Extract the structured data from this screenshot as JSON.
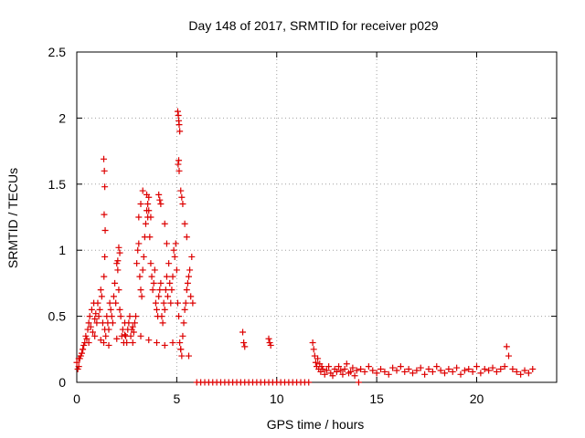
{
  "chart_data": {
    "type": "scatter",
    "title": "Day 148 of 2017, SRMTID for receiver p029",
    "xlabel": "GPS time / hours",
    "ylabel": "SRMTID / TECUs",
    "xlim": [
      0,
      24
    ],
    "ylim": [
      0,
      2.5
    ],
    "xticks": [
      0,
      5,
      10,
      15,
      20
    ],
    "xtick_labels": [
      "0",
      "5",
      "10",
      "15",
      "20"
    ],
    "yticks": [
      0,
      0.5,
      1,
      1.5,
      2,
      2.5
    ],
    "ytick_labels": [
      "0",
      "0.5",
      "1",
      "1.5",
      "2",
      "2.5"
    ],
    "grid": true,
    "marker": "+",
    "color": "#dd0000",
    "series": [
      {
        "name": "SRMTID",
        "x": [
          0.0,
          0.05,
          0.1,
          0.15,
          0.2,
          0.25,
          0.3,
          0.35,
          0.4,
          0.45,
          0.5,
          0.55,
          0.6,
          0.65,
          0.7,
          0.75,
          0.8,
          0.85,
          0.9,
          0.95,
          1.0,
          1.05,
          1.1,
          1.15,
          1.2,
          1.25,
          1.3,
          1.35,
          1.4,
          1.45,
          1.5,
          1.55,
          1.6,
          1.65,
          1.7,
          1.75,
          1.8,
          1.85,
          1.9,
          1.95,
          2.0,
          2.05,
          2.1,
          2.15,
          2.2,
          2.25,
          2.3,
          2.35,
          2.4,
          2.45,
          2.5,
          2.55,
          2.6,
          2.65,
          2.7,
          2.75,
          2.8,
          2.85,
          2.9,
          2.95,
          3.0,
          3.05,
          3.1,
          3.15,
          3.2,
          3.25,
          3.3,
          3.35,
          3.4,
          3.45,
          3.5,
          3.55,
          3.6,
          3.65,
          3.7,
          3.75,
          3.8,
          3.85,
          3.9,
          3.95,
          4.0,
          4.05,
          4.1,
          4.15,
          4.2,
          4.25,
          4.3,
          4.35,
          4.4,
          4.45,
          4.5,
          4.55,
          4.6,
          4.65,
          4.7,
          4.75,
          4.8,
          4.85,
          4.9,
          4.95,
          5.0,
          5.05,
          5.1,
          5.15,
          5.2,
          5.25,
          5.3,
          5.35,
          5.4,
          5.45,
          5.5,
          5.55,
          5.6,
          5.65,
          5.7,
          5.75,
          5.8,
          1.35,
          1.38,
          1.4,
          1.37,
          1.42,
          1.4,
          1.36,
          2.1,
          2.15,
          2.05,
          3.1,
          3.2,
          3.3,
          3.5,
          3.55,
          3.6,
          3.7,
          4.1,
          4.2,
          4.15,
          4.4,
          4.5,
          5.05,
          5.08,
          5.1,
          5.12,
          5.15,
          5.1,
          5.07,
          5.12,
          5.2,
          5.25,
          5.3,
          5.4,
          5.5,
          0.1,
          0.3,
          0.6,
          0.9,
          1.2,
          1.6,
          2.0,
          2.4,
          2.8,
          3.2,
          3.6,
          4.0,
          4.4,
          4.8,
          5.2,
          5.6,
          6.0,
          6.2,
          6.4,
          6.6,
          6.8,
          7.0,
          7.2,
          7.4,
          7.6,
          7.8,
          8.0,
          8.2,
          8.4,
          8.6,
          8.8,
          9.0,
          9.2,
          9.4,
          9.6,
          9.8,
          10.0,
          10.2,
          10.4,
          10.6,
          10.8,
          11.0,
          11.2,
          11.4,
          11.6,
          14.1,
          8.3,
          8.35,
          8.4,
          9.6,
          9.65,
          9.7,
          11.8,
          11.85,
          11.9,
          11.95,
          12.0,
          12.05,
          12.1,
          12.15,
          12.2,
          12.25,
          12.3,
          12.4,
          12.5,
          12.6,
          12.7,
          12.8,
          12.9,
          13.0,
          13.1,
          13.2,
          13.3,
          13.4,
          13.5,
          13.6,
          13.7,
          13.8,
          13.9,
          14.0,
          14.2,
          14.4,
          14.6,
          14.8,
          15.0,
          15.2,
          15.4,
          15.6,
          15.8,
          16.0,
          16.2,
          16.4,
          16.6,
          16.8,
          17.0,
          17.2,
          17.4,
          17.6,
          17.8,
          18.0,
          18.2,
          18.4,
          18.6,
          18.8,
          19.0,
          19.2,
          19.4,
          19.6,
          19.8,
          20.0,
          20.2,
          20.4,
          20.6,
          20.8,
          21.0,
          21.2,
          21.4,
          21.5,
          21.6,
          21.8,
          22.0,
          22.2,
          22.4,
          22.6,
          22.8
        ],
        "y": [
          0.15,
          0.1,
          0.12,
          0.18,
          0.2,
          0.22,
          0.25,
          0.28,
          0.3,
          0.35,
          0.33,
          0.4,
          0.45,
          0.5,
          0.42,
          0.55,
          0.38,
          0.6,
          0.48,
          0.52,
          0.45,
          0.6,
          0.5,
          0.55,
          0.7,
          0.65,
          0.45,
          0.3,
          0.4,
          0.35,
          0.5,
          0.45,
          0.4,
          0.6,
          0.55,
          0.5,
          0.45,
          0.65,
          0.75,
          0.6,
          0.9,
          0.85,
          0.7,
          0.55,
          0.5,
          0.35,
          0.4,
          0.3,
          0.45,
          0.35,
          0.3,
          0.4,
          0.45,
          0.5,
          0.35,
          0.4,
          0.42,
          0.38,
          0.45,
          0.5,
          0.9,
          1.0,
          1.05,
          0.8,
          0.7,
          0.65,
          0.85,
          0.95,
          1.1,
          1.2,
          1.3,
          1.25,
          1.4,
          1.1,
          0.9,
          0.8,
          0.7,
          0.75,
          0.85,
          0.6,
          0.55,
          0.5,
          0.65,
          0.7,
          0.75,
          0.5,
          0.45,
          0.6,
          0.55,
          0.7,
          0.8,
          0.65,
          0.9,
          0.75,
          0.6,
          0.7,
          0.8,
          1.0,
          0.95,
          1.05,
          0.85,
          0.6,
          0.5,
          0.3,
          0.25,
          0.2,
          0.35,
          0.45,
          0.55,
          0.6,
          0.7,
          0.75,
          0.8,
          0.85,
          0.65,
          0.95,
          0.6,
          1.69,
          1.6,
          1.48,
          1.27,
          1.15,
          0.95,
          0.8,
          1.02,
          0.98,
          0.92,
          1.25,
          1.35,
          1.45,
          1.42,
          1.35,
          1.3,
          1.25,
          1.42,
          1.35,
          1.38,
          1.2,
          1.05,
          2.05,
          2.02,
          1.98,
          1.95,
          1.9,
          1.68,
          1.65,
          1.6,
          1.45,
          1.4,
          1.35,
          1.2,
          1.1,
          0.18,
          0.25,
          0.3,
          0.35,
          0.32,
          0.28,
          0.33,
          0.36,
          0.3,
          0.35,
          0.32,
          0.3,
          0.28,
          0.3,
          0.25,
          0.2,
          0.0,
          0.0,
          0.0,
          0.0,
          0.0,
          0.0,
          0.0,
          0.0,
          0.0,
          0.0,
          0.0,
          0.0,
          0.0,
          0.0,
          0.0,
          0.0,
          0.0,
          0.0,
          0.0,
          0.0,
          0.0,
          0.0,
          0.0,
          0.0,
          0.0,
          0.0,
          0.0,
          0.0,
          0.0,
          0.0,
          0.38,
          0.3,
          0.27,
          0.33,
          0.3,
          0.28,
          0.3,
          0.25,
          0.2,
          0.15,
          0.12,
          0.18,
          0.1,
          0.14,
          0.08,
          0.12,
          0.1,
          0.06,
          0.09,
          0.12,
          0.07,
          0.05,
          0.1,
          0.08,
          0.12,
          0.09,
          0.06,
          0.1,
          0.14,
          0.07,
          0.08,
          0.11,
          0.05,
          0.09,
          0.1,
          0.08,
          0.12,
          0.09,
          0.07,
          0.1,
          0.08,
          0.06,
          0.11,
          0.09,
          0.12,
          0.08,
          0.1,
          0.07,
          0.09,
          0.11,
          0.06,
          0.1,
          0.08,
          0.12,
          0.09,
          0.07,
          0.1,
          0.08,
          0.11,
          0.06,
          0.09,
          0.1,
          0.08,
          0.12,
          0.07,
          0.1,
          0.09,
          0.11,
          0.08,
          0.1,
          0.12,
          0.27,
          0.2,
          0.1,
          0.08,
          0.06,
          0.09,
          0.07,
          0.1
        ]
      }
    ]
  }
}
